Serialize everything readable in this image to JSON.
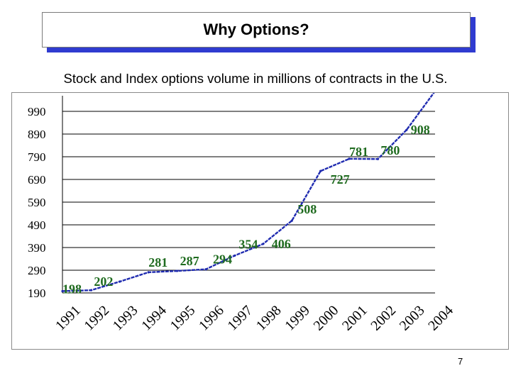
{
  "slide": {
    "title": "Why Options?",
    "subtitle": "Stock and Index options volume in millions of contracts in the U.S.",
    "page_number": "7"
  },
  "chart_data": {
    "type": "line",
    "title": "",
    "xlabel": "",
    "ylabel": "",
    "x": [
      "1991",
      "1992",
      "1993",
      "1994",
      "1995",
      "1996",
      "1997",
      "1998",
      "1999",
      "2000",
      "2001",
      "2002",
      "2003",
      "2004"
    ],
    "y_ticks": [
      190,
      290,
      390,
      490,
      590,
      690,
      790,
      890,
      990
    ],
    "ylim": [
      190,
      1040
    ],
    "grid": true,
    "series": [
      {
        "values": [
          198,
          202,
          240,
          281,
          287,
          294,
          354,
          406,
          508,
          727,
          781,
          780,
          908,
          1080
        ]
      }
    ],
    "point_labels": [
      {
        "label": "198",
        "x": "1991",
        "y": 198
      },
      {
        "label": "202",
        "x": "1992",
        "y": 202
      },
      {
        "label": "281",
        "x": "1994",
        "y": 281
      },
      {
        "label": "287",
        "x": "1995",
        "y": 287
      },
      {
        "label": "294",
        "x": "1996",
        "y": 294
      },
      {
        "label": "354",
        "x": "1997",
        "y": 354
      },
      {
        "label": "406",
        "x": "1998",
        "y": 406
      },
      {
        "label": "508",
        "x": "1999",
        "y": 508
      },
      {
        "label": "727",
        "x": "2000",
        "y": 727
      },
      {
        "label": "781",
        "x": "2001",
        "y": 781
      },
      {
        "label": "780",
        "x": "2002",
        "y": 780
      },
      {
        "label": "908",
        "x": "2003",
        "y": 908
      },
      {
        "label": "1080",
        "x": "2004",
        "y": 1080
      }
    ],
    "colors": {
      "line": "#1f2bb0",
      "labels": "#1f6b1f",
      "axis_text": "#000000"
    }
  }
}
